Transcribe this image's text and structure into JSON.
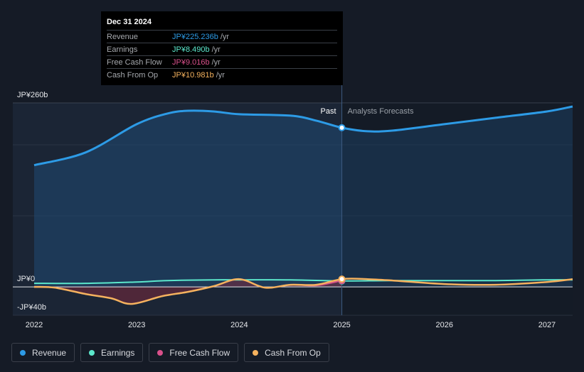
{
  "tooltip": {
    "date": "Dec 31 2024",
    "rows": [
      {
        "label": "Revenue",
        "value": "JP¥225.236b",
        "unit": "/yr",
        "color": "#2d9be6"
      },
      {
        "label": "Earnings",
        "value": "JP¥8.490b",
        "unit": "/yr",
        "color": "#5ce8cc"
      },
      {
        "label": "Free Cash Flow",
        "value": "JP¥9.016b",
        "unit": "/yr",
        "color": "#d9508b"
      },
      {
        "label": "Cash From Op",
        "value": "JP¥10.981b",
        "unit": "/yr",
        "color": "#f5b25e"
      }
    ]
  },
  "legend": [
    {
      "label": "Revenue",
      "color": "#2d9be6"
    },
    {
      "label": "Earnings",
      "color": "#5ce8cc"
    },
    {
      "label": "Free Cash Flow",
      "color": "#d9508b"
    },
    {
      "label": "Cash From Op",
      "color": "#f5b25e"
    }
  ],
  "chart_data": {
    "type": "line",
    "ylim": [
      -40,
      260
    ],
    "y_ticks": [
      {
        "label": "JP¥260b",
        "value": 260
      },
      {
        "label": "JP¥0",
        "value": 0
      },
      {
        "label": "-JP¥40b",
        "value": -40
      }
    ],
    "xlim": [
      2022,
      2027.25
    ],
    "x_ticks": [
      "2022",
      "2023",
      "2024",
      "2025",
      "2026",
      "2027"
    ],
    "past_label": "Past",
    "forecast_label": "Analysts Forecasts",
    "divider_x": 2025.0,
    "marked_x": 2025.0,
    "series": [
      {
        "name": "Revenue",
        "color": "#2d9be6",
        "area": true,
        "points": [
          [
            2022.0,
            172
          ],
          [
            2022.5,
            190
          ],
          [
            2023.0,
            230
          ],
          [
            2023.3,
            245
          ],
          [
            2023.5,
            249
          ],
          [
            2023.75,
            248
          ],
          [
            2024.0,
            244
          ],
          [
            2024.5,
            242
          ],
          [
            2024.75,
            235
          ],
          [
            2025.0,
            225
          ],
          [
            2025.25,
            220
          ],
          [
            2025.5,
            221
          ],
          [
            2026.0,
            230
          ],
          [
            2026.5,
            239
          ],
          [
            2027.0,
            248
          ],
          [
            2027.25,
            255
          ]
        ]
      },
      {
        "name": "Earnings",
        "color": "#5ce8cc",
        "points": [
          [
            2022.0,
            5
          ],
          [
            2022.5,
            5
          ],
          [
            2023.0,
            7
          ],
          [
            2023.3,
            9
          ],
          [
            2023.75,
            10
          ],
          [
            2024.0,
            10
          ],
          [
            2024.5,
            10
          ],
          [
            2025.0,
            8.5
          ],
          [
            2025.5,
            9
          ],
          [
            2026.0,
            9
          ],
          [
            2026.5,
            9
          ],
          [
            2027.0,
            10
          ],
          [
            2027.25,
            10
          ]
        ]
      },
      {
        "name": "Free Cash Flow",
        "color": "#d9508b",
        "points": [
          [
            2022.0,
            0
          ],
          [
            2022.2,
            -1
          ],
          [
            2022.5,
            -10
          ],
          [
            2022.75,
            -16
          ],
          [
            2022.95,
            -24
          ],
          [
            2023.25,
            -13
          ],
          [
            2023.5,
            -7
          ],
          [
            2023.75,
            1
          ],
          [
            2024.0,
            11
          ],
          [
            2024.25,
            -1
          ],
          [
            2024.5,
            3
          ],
          [
            2024.75,
            2
          ],
          [
            2025.0,
            9
          ]
        ]
      },
      {
        "name": "Cash From Op",
        "color": "#f5b25e",
        "points": [
          [
            2022.0,
            0
          ],
          [
            2022.2,
            -1
          ],
          [
            2022.5,
            -10
          ],
          [
            2022.75,
            -16
          ],
          [
            2022.95,
            -24
          ],
          [
            2023.25,
            -13
          ],
          [
            2023.5,
            -7
          ],
          [
            2023.75,
            1
          ],
          [
            2024.0,
            11
          ],
          [
            2024.25,
            -1
          ],
          [
            2024.5,
            3
          ],
          [
            2024.75,
            3
          ],
          [
            2025.0,
            11
          ],
          [
            2025.25,
            11
          ],
          [
            2025.5,
            9
          ],
          [
            2026.0,
            4
          ],
          [
            2026.5,
            3
          ],
          [
            2027.0,
            7
          ],
          [
            2027.25,
            11
          ]
        ]
      }
    ]
  }
}
